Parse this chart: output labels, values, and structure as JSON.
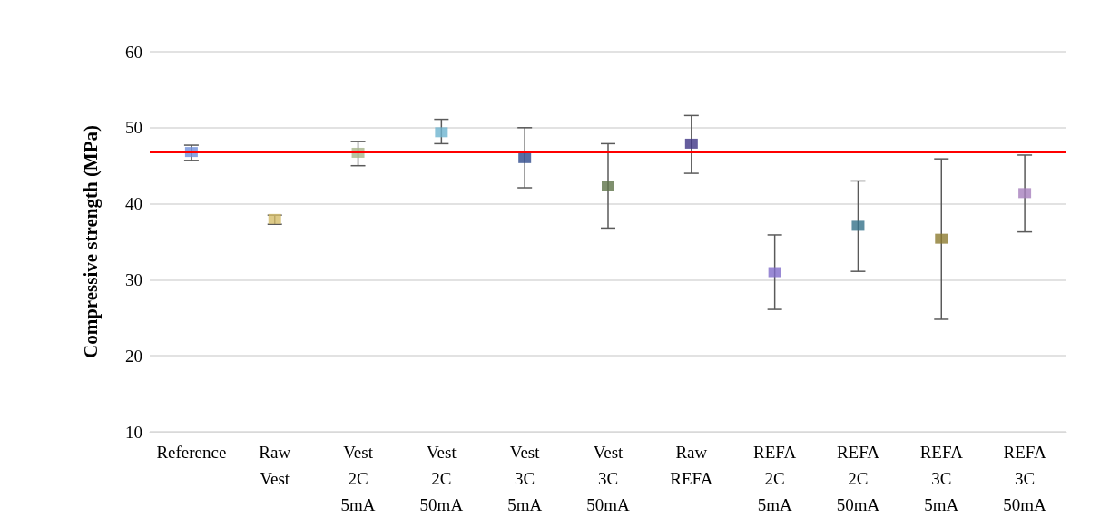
{
  "chart_data": {
    "type": "scatter",
    "ylabel": "Compressive strength (MPa)",
    "categories": [
      "Reference",
      "Raw Vest",
      "Vest 2C 5mA",
      "Vest 2C 50mA",
      "Vest 3C 5mA",
      "Vest 3C 50mA",
      "Raw REFA",
      "REFA 2C 5mA",
      "REFA 2C 50mA",
      "REFA 3C 5mA",
      "REFA 3C 50mA"
    ],
    "values": [
      46.8,
      38.0,
      46.7,
      49.4,
      46.0,
      42.4,
      47.9,
      31.0,
      37.1,
      35.4,
      41.4
    ],
    "errors": [
      [
        45.7,
        47.7
      ],
      [
        37.3,
        38.5
      ],
      [
        45.0,
        48.2
      ],
      [
        47.9,
        51.1
      ],
      [
        42.1,
        50.0
      ],
      [
        36.8,
        47.9
      ],
      [
        44.0,
        51.6
      ],
      [
        26.1,
        35.9
      ],
      [
        31.1,
        43.0
      ],
      [
        24.8,
        45.9
      ],
      [
        36.3,
        46.4
      ]
    ],
    "colors": [
      "#6f8fdb",
      "#d4bd6a",
      "#a6b58a",
      "#6eb4cf",
      "#2e4a8c",
      "#5f744a",
      "#3f3585",
      "#7f6cc9",
      "#34728a",
      "#8c7a30",
      "#a67fbd"
    ],
    "marker": "square",
    "ylim": [
      10,
      60
    ],
    "yticks": [
      10,
      20,
      30,
      40,
      50,
      60
    ],
    "grid": "y",
    "ref_lines": [
      {
        "axis": "y",
        "value": 46.8,
        "color": "#ff0000"
      }
    ]
  }
}
